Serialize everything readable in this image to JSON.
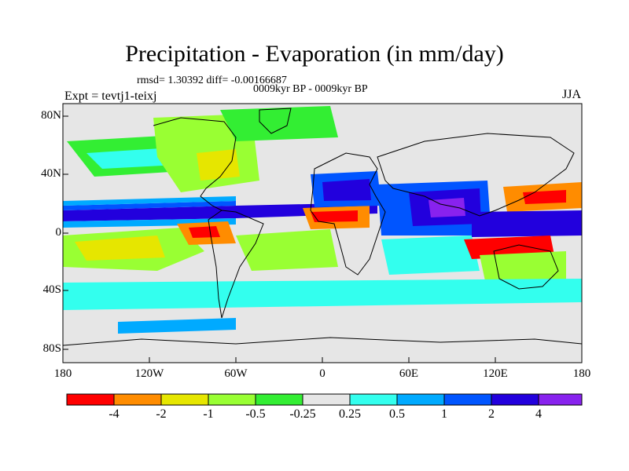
{
  "title": "Precipitation - Evaporation (in mm/day)",
  "stats": "rmsd= 1.30392 diff= -0.00166687",
  "period": "0009kyr BP - 0009kyr BP",
  "expt": "Expt = tevtj1-teixj",
  "season": "JJA",
  "map": {
    "lat_ticks": [
      "80N",
      "40N",
      "0",
      "40S",
      "80S"
    ],
    "lon_ticks": [
      "180",
      "120W",
      "60W",
      "0",
      "60E",
      "120E",
      "180"
    ],
    "background_color": "#e6e6e6",
    "coastline_color": "#000000"
  },
  "colorbar": {
    "colors": [
      "#ff0000",
      "#ff8c00",
      "#e6e600",
      "#99ff33",
      "#33ee33",
      "#e6e6e6",
      "#33ffee",
      "#00aaff",
      "#0055ff",
      "#2200dd",
      "#8822ee"
    ],
    "labels": [
      "-4",
      "-2",
      "-1",
      "-0.5",
      "-0.25",
      "0.25",
      "0.5",
      "1",
      "2",
      "4"
    ]
  }
}
